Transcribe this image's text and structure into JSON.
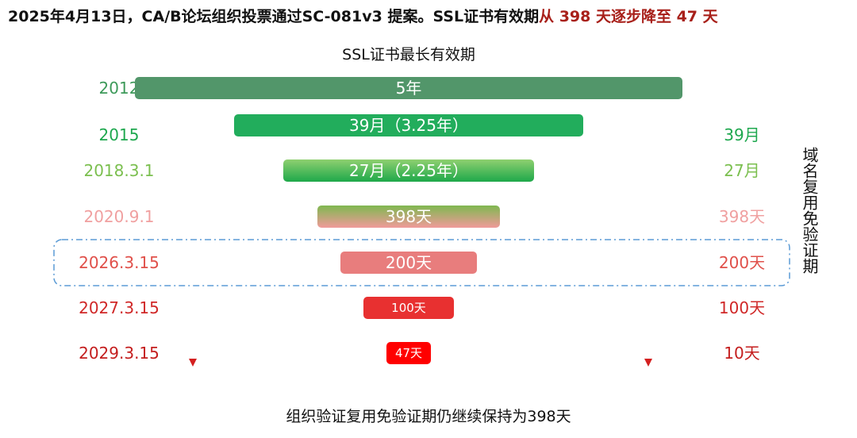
{
  "header": {
    "title": "2025年4月13日，CA/B论坛组织投票通过SC-081v3 提案。SSL证书有效期",
    "title_highlight": "从 398 天逐步降至 47 天"
  },
  "subtitle": "SSL证书最长有效期",
  "rows": [
    {
      "date": "2012",
      "bar": "5年"
    },
    {
      "date": "2015",
      "bar": "39月（3.25年）",
      "side": "39月"
    },
    {
      "date": "2018.3.1",
      "bar": "27月（2.25年）",
      "side": "27月"
    },
    {
      "date": "2020.9.1",
      "bar": "398天",
      "side": "398天"
    },
    {
      "date": "2026.3.15",
      "bar": "200天",
      "side": "200天"
    },
    {
      "date": "2027.3.15",
      "bar": "100天",
      "side": "100天"
    },
    {
      "date": "2029.3.15",
      "bar": "47天",
      "side": "10天"
    }
  ],
  "side_note": "域名复用免验证期",
  "footer": "组织验证复用免验证期仍继续保持为398天"
}
